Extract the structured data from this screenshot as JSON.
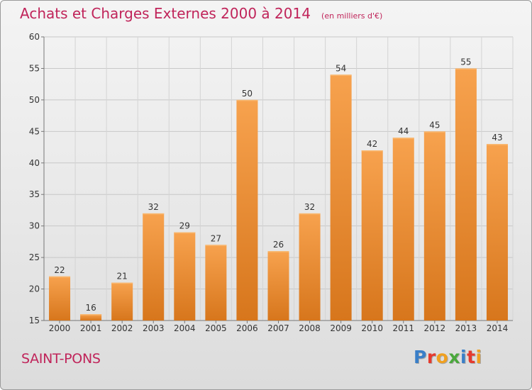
{
  "header": {
    "title": "Achats et Charges Externes 2000 à 2014",
    "subtitle": "(en milliers d'€)"
  },
  "footer": {
    "city": "SAINT-PONS",
    "logo_text": "Proxiti"
  },
  "colors": {
    "accent": "#c0245a",
    "bar_light": "#f7a24e",
    "bar_dark": "#d7761c",
    "logo_letters": [
      "#3a7fc8",
      "#e63a2e",
      "#f0a020",
      "#4aa83c",
      "#3a7fc8",
      "#e63a2e",
      "#f0a020"
    ]
  },
  "chart_data": {
    "type": "bar",
    "title": "Achats et Charges Externes 2000 à 2014",
    "subtitle": "(en milliers d'€)",
    "categories": [
      "2000",
      "2001",
      "2002",
      "2003",
      "2004",
      "2005",
      "2006",
      "2007",
      "2008",
      "2009",
      "2010",
      "2011",
      "2012",
      "2013",
      "2014"
    ],
    "values": [
      22,
      16,
      21,
      32,
      29,
      27,
      50,
      26,
      32,
      54,
      42,
      44,
      45,
      55,
      43
    ],
    "ylim": [
      15,
      60
    ],
    "yticks": [
      15,
      20,
      25,
      30,
      35,
      40,
      45,
      50,
      55,
      60
    ],
    "grid": true,
    "legend": "none"
  }
}
